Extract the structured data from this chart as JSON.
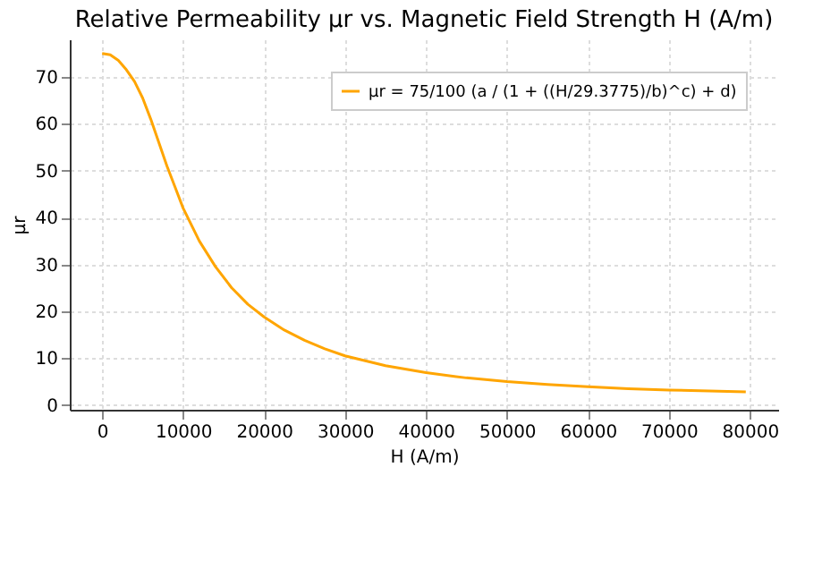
{
  "chart_data": {
    "type": "line",
    "title": "Relative Permeability μr vs. Magnetic Field Strength H (A/m)",
    "xlabel": "H (A/m)",
    "ylabel": "μr",
    "x": [
      0,
      1000,
      2000,
      3000,
      4000,
      5000,
      6000,
      7000,
      8000,
      9000,
      10000,
      12000,
      14000,
      16000,
      18000,
      20000,
      22500,
      25000,
      27500,
      30000,
      35000,
      40000,
      45000,
      50000,
      55000,
      60000,
      65000,
      70000,
      75000,
      79500
    ],
    "series": [
      {
        "name": "μr = 75/100 (a / (1 + ((H/29.3775)/b)^c) + d)",
        "color": "#ffa500",
        "values": [
          75,
          74.7,
          73.5,
          71.5,
          69,
          65.5,
          61,
          56,
          51,
          46.5,
          42,
          35,
          29.5,
          25,
          21.5,
          18.8,
          16,
          13.8,
          12,
          10.5,
          8.4,
          6.9,
          5.8,
          5.0,
          4.4,
          3.9,
          3.5,
          3.2,
          3.0,
          2.8
        ]
      }
    ],
    "xlim": [
      -4000,
      83500
    ],
    "ylim": [
      -1,
      78
    ],
    "xticks": [
      0,
      10000,
      20000,
      30000,
      40000,
      50000,
      60000,
      70000,
      80000
    ],
    "yticks": [
      0,
      10,
      20,
      30,
      40,
      50,
      60,
      70
    ],
    "grid": true,
    "legend": "top right",
    "marker": "none",
    "line_style": "solid"
  }
}
